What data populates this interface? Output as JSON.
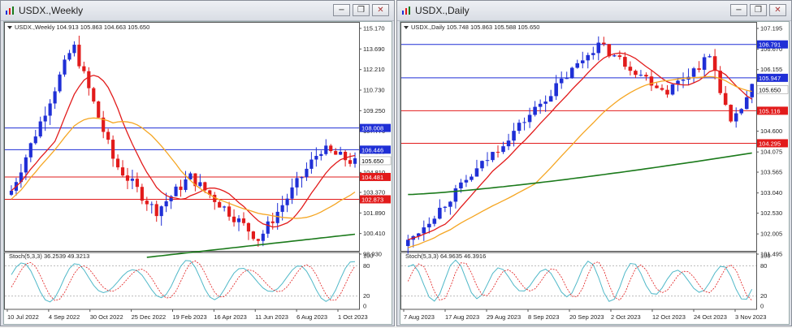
{
  "windows": [
    {
      "id": "weekly",
      "title": "USDX.,Weekly",
      "buttons": [
        "−",
        "❐",
        "✕"
      ],
      "header": "USDX.,Weekly  104.913 105.863 104.663 105.650",
      "price_axis": [
        "115.170",
        "113.690",
        "112.210",
        "110.730",
        "109.250",
        "107.770",
        "106.290",
        "104.810",
        "103.370",
        "101.890",
        "100.410",
        "98.930"
      ],
      "levels": [
        {
          "label": "108.008",
          "value": 108.008,
          "color": "#1f2fd6",
          "kind": "hline"
        },
        {
          "label": "106.446",
          "value": 106.446,
          "color": "#1f2fd6",
          "kind": "hline"
        },
        {
          "label": "105.650",
          "value": 105.65,
          "color": "#ffffff",
          "kind": "current"
        },
        {
          "label": "104.481",
          "value": 104.481,
          "color": "#e21b1b",
          "kind": "hline"
        },
        {
          "label": "102.873",
          "value": 102.873,
          "color": "#e21b1b",
          "kind": "hline"
        }
      ],
      "stoch_label": "Stoch(5,3,3) 36.2539 49.3213",
      "stoch_axis": [
        "100",
        "80",
        "20",
        "0"
      ],
      "time_axis": [
        "10 Jul 2022",
        "4 Sep 2022",
        "30 Oct 2022",
        "25 Dec 2022",
        "19 Feb 2023",
        "16 Apr 2023",
        "11 Jun 2023",
        "6 Aug 2023",
        "1 Oct 2023"
      ]
    },
    {
      "id": "daily",
      "title": "USDX.,Daily",
      "buttons": [
        "−",
        "❐",
        "✕"
      ],
      "header": "USDX.,Daily  105.748 105.863 105.588 105.650",
      "price_axis": [
        "107.195",
        "106.670",
        "106.155",
        "105.610",
        "105.110",
        "104.600",
        "104.075",
        "103.565",
        "103.040",
        "102.530",
        "102.005",
        "101.495"
      ],
      "levels": [
        {
          "label": "106.791",
          "value": 106.791,
          "color": "#1f2fd6",
          "kind": "hline"
        },
        {
          "label": "105.947",
          "value": 105.947,
          "color": "#1f2fd6",
          "kind": "hline"
        },
        {
          "label": "105.650",
          "value": 105.65,
          "color": "#ffffff",
          "kind": "current"
        },
        {
          "label": "105.116",
          "value": 105.116,
          "color": "#e21b1b",
          "kind": "hline"
        },
        {
          "label": "104.295",
          "value": 104.295,
          "color": "#e21b1b",
          "kind": "hline"
        }
      ],
      "stoch_label": "Stoch(5,3,3) 64.9635 46.3916",
      "stoch_axis": [
        "100",
        "80",
        "20",
        "0"
      ],
      "time_axis": [
        "7 Aug 2023",
        "17 Aug 2023",
        "29 Aug 2023",
        "8 Sep 2023",
        "20 Sep 2023",
        "2 Oct 2023",
        "12 Oct 2023",
        "24 Oct 2023",
        "3 Nov 2023"
      ]
    }
  ],
  "colors": {
    "bull": "#1f2fd6",
    "bear": "#e21b1b",
    "ma_fast": "#e21b1b",
    "ma_mid": "#f5a623",
    "ma_slow": "#1b7a1b",
    "stoch_main": "#4fb8c8",
    "stoch_signal": "#e21b1b"
  }
}
